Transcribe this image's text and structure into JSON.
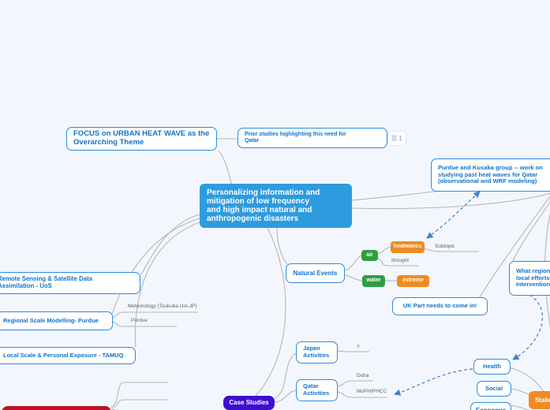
{
  "app": {
    "type": "mind-map-canvas"
  },
  "palette": {
    "background": "#f4f6fd",
    "node_border": "#2a8ce0",
    "node_text": "#1173c9",
    "central_fill": "#2e9bdf",
    "green": "#2f9e44",
    "orange": "#f08b22",
    "purple": "#3d0ed2",
    "crimson": "#bf1128",
    "connector_gray": "#b6b6b6",
    "relation_blue": "#3b82d0",
    "label_gray": "#5f6368"
  },
  "badges": {
    "notes_count": "1",
    "notes_icon": "list-icon"
  },
  "nodes": [
    {
      "name": "focus-theme-node",
      "type": "outline",
      "label": "FOCUS on URBAN HEAT WAVE as the\nOverarching Theme"
    },
    {
      "name": "prior-studies-node",
      "type": "outline",
      "label": "Prior studies highlighting this need for\nQatar"
    },
    {
      "name": "central-topic-node",
      "type": "filled-central",
      "label": "Personalizing information and\nmitigation of low frequency\nand high impact natural and\nanthropogenic disasters"
    },
    {
      "name": "purdue-kusaka-node",
      "type": "outline",
      "label": "Purdue and Kusaka group -- work on\nstudying past heat waves for Qatar\n(observational and WRF modeling)"
    },
    {
      "name": "natural-events-node",
      "type": "outline",
      "label": "Natural Events"
    },
    {
      "name": "air-node",
      "type": "chip-green",
      "label": "air"
    },
    {
      "name": "heatwaves-node",
      "type": "chip-orange",
      "label": "heatwaves"
    },
    {
      "name": "subtopic-label",
      "type": "line-label",
      "label": "Subtopic"
    },
    {
      "name": "drought-label",
      "type": "line-label",
      "label": "drought"
    },
    {
      "name": "water-node",
      "type": "chip-green",
      "label": "water"
    },
    {
      "name": "extreme-node",
      "type": "chip-orange",
      "label": "extreme"
    },
    {
      "name": "remote-sensing-node",
      "type": "outline",
      "label": "Remote Sensing & Satellite Data\nAssimilation - UoS"
    },
    {
      "name": "regional-scale-node",
      "type": "outline",
      "label": "Regional Scale Modelling- Purdue"
    },
    {
      "name": "meteorology-label",
      "type": "line-label",
      "label": "Meteorology (Tsukuba Uni-JP)"
    },
    {
      "name": "purdue-label",
      "type": "line-label",
      "label": "Purdue"
    },
    {
      "name": "local-scale-node",
      "type": "outline",
      "label": "Local Scale & Personal Exposure - TAMUQ"
    },
    {
      "name": "uk-part-node",
      "type": "outline",
      "label": "UK Part needs to come in!"
    },
    {
      "name": "what-regions-node",
      "type": "outline",
      "label": "What regions\nlocal efforts\nIntervention?"
    },
    {
      "name": "japan-activities-node",
      "type": "outline",
      "label": "Japan\nActivities"
    },
    {
      "name": "question-label",
      "type": "line-label",
      "label": "?"
    },
    {
      "name": "qatar-activities-node",
      "type": "outline",
      "label": "Qatar\nActivities"
    },
    {
      "name": "doha-label",
      "type": "line-label",
      "label": "Doha"
    },
    {
      "name": "moph-label",
      "type": "line-label",
      "label": "MoPH/PHCC"
    },
    {
      "name": "case-studies-node",
      "type": "filled-purple",
      "label": "Case Studies"
    },
    {
      "name": "health-node",
      "type": "outline",
      "label": "Health"
    },
    {
      "name": "social-node",
      "type": "outline",
      "label": "Social"
    },
    {
      "name": "economic-node",
      "type": "outline",
      "label": "Economic"
    },
    {
      "name": "stakeholders-node",
      "type": "filled-orange",
      "label": "Stakeholders"
    },
    {
      "name": "crimson-node",
      "type": "filled-crimson",
      "label": ""
    }
  ]
}
